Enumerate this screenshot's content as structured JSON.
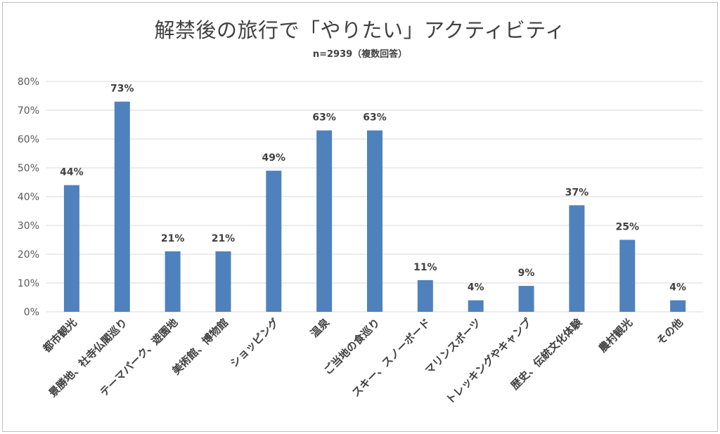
{
  "chart_data": {
    "type": "bar",
    "title": "解禁後の旅行で「やりたい」アクティビティ",
    "subtitle": "n=2939（複数回答）",
    "categories": [
      "都市観光",
      "景勝地、社寺仏閣巡り",
      "テーマパーク、遊園地",
      "美術館、博物館",
      "ショッピング",
      "温泉",
      "ご当地の食巡り",
      "スキー、スノーボード",
      "マリンスポーツ",
      "トレッキングやキャンプ",
      "歴史、伝統文化体験",
      "農村観光",
      "その他"
    ],
    "values": [
      44,
      73,
      21,
      21,
      49,
      63,
      63,
      11,
      4,
      9,
      37,
      25,
      4
    ],
    "data_labels": [
      "44%",
      "73%",
      "21%",
      "21%",
      "49%",
      "63%",
      "63%",
      "11%",
      "4%",
      "9%",
      "37%",
      "25%",
      "4%"
    ],
    "yticks": [
      "0%",
      "10%",
      "20%",
      "30%",
      "40%",
      "50%",
      "60%",
      "70%",
      "80%"
    ],
    "ylim": [
      0,
      80
    ],
    "grid": true,
    "bar_color": "#4f81bd",
    "grid_color": "#d9d9d9"
  }
}
